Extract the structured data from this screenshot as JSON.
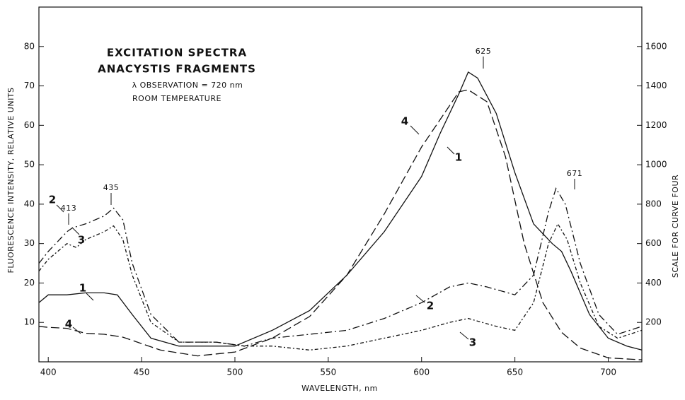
{
  "chart_data": {
    "type": "line",
    "title": "EXCITATION SPECTRA",
    "subtitle": "ANACYSTIS FRAGMENTS",
    "notes": [
      "λ OBSERVATION = 720 nm",
      "ROOM TEMPERATURE"
    ],
    "annotations": [
      "413",
      "435",
      "625",
      "671"
    ],
    "x_label": "WAVELENGTH, nm",
    "y_label": "FLUORESCENCE INTENSITY, RELATIVE UNITS",
    "y2_label": "SCALE FOR CURVE FOUR",
    "xlim": [
      395,
      718
    ],
    "ylim": [
      0,
      90
    ],
    "y2lim": [
      0,
      1800
    ],
    "xticks": [
      400,
      450,
      500,
      550,
      600,
      650,
      700
    ],
    "yticks": [
      10,
      20,
      30,
      40,
      50,
      60,
      70,
      80
    ],
    "y2ticks": [
      200,
      400,
      600,
      800,
      1000,
      1200,
      1400,
      1600
    ],
    "series": [
      {
        "name": "1",
        "color": "#111111",
        "dash": "solid",
        "x": [
          395,
          400,
          410,
          420,
          430,
          437,
          445,
          455,
          470,
          500,
          520,
          540,
          560,
          580,
          600,
          610,
          620,
          625,
          630,
          640,
          650,
          660,
          670,
          675,
          680,
          690,
          700,
          710,
          718
        ],
        "values": [
          15,
          17,
          17,
          17.5,
          17.5,
          17,
          12,
          6,
          4,
          4,
          8,
          13,
          22,
          33,
          47,
          58,
          68,
          73.5,
          72,
          63,
          48,
          35,
          30,
          28,
          23,
          12,
          6,
          4,
          3
        ]
      },
      {
        "name": "2",
        "color": "#111111",
        "dash": "dashdot",
        "x": [
          395,
          400,
          410,
          413,
          420,
          430,
          435,
          440,
          445,
          455,
          470,
          490,
          505,
          520,
          540,
          560,
          580,
          600,
          615,
          625,
          635,
          650,
          660,
          668,
          672,
          677,
          685,
          695,
          705,
          718
        ],
        "values": [
          25,
          28,
          33,
          34,
          35,
          37,
          39,
          36,
          25,
          12,
          5,
          5,
          4,
          6,
          7,
          8,
          11,
          15,
          19,
          20,
          19,
          17,
          22,
          38,
          44,
          40,
          25,
          12,
          7,
          9
        ]
      },
      {
        "name": "3",
        "color": "#111111",
        "dash": "dotdash",
        "x": [
          395,
          400,
          410,
          415,
          420,
          430,
          435,
          440,
          445,
          455,
          470,
          490,
          505,
          520,
          540,
          560,
          580,
          600,
          615,
          625,
          640,
          650,
          660,
          668,
          673,
          678,
          685,
          695,
          705,
          718
        ],
        "values": [
          23,
          26,
          30,
          29,
          31,
          33,
          34.5,
          31,
          22,
          10,
          5,
          5,
          4,
          4,
          3,
          4,
          6,
          8,
          10,
          11,
          9,
          8,
          15,
          30,
          35,
          31,
          20,
          9,
          6,
          8
        ]
      },
      {
        "name": "4",
        "color": "#111111",
        "dash": "dashed",
        "axis": "y2",
        "x": [
          395,
          400,
          410,
          420,
          430,
          440,
          460,
          480,
          500,
          520,
          540,
          560,
          580,
          600,
          610,
          620,
          625,
          635,
          645,
          655,
          665,
          675,
          685,
          700,
          718
        ],
        "values": [
          180,
          175,
          170,
          145,
          140,
          125,
          60,
          30,
          50,
          120,
          230,
          440,
          750,
          1090,
          1230,
          1370,
          1380,
          1320,
          1040,
          600,
          300,
          150,
          70,
          20,
          10
        ]
      }
    ]
  }
}
